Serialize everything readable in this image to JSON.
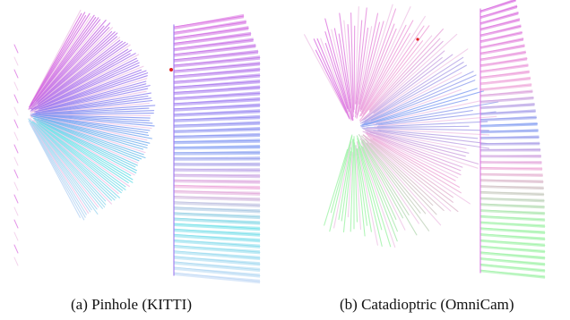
{
  "figure": {
    "captions": {
      "a": "(a) Pinhole (KITTI)",
      "b": "(b) Catadioptric (OmniCam)"
    },
    "colors": {
      "background": "#ffffff",
      "magenta": "#d86ae0",
      "violet": "#a07cf0",
      "blue": "#7c9cf2",
      "cyan": "#6fe0e8",
      "pink": "#f0a6d8",
      "pale_pink": "#efc4e6",
      "light_blue": "#bcd6f4",
      "green": "#9ef2a6",
      "red_marker": "#e02020"
    }
  }
}
